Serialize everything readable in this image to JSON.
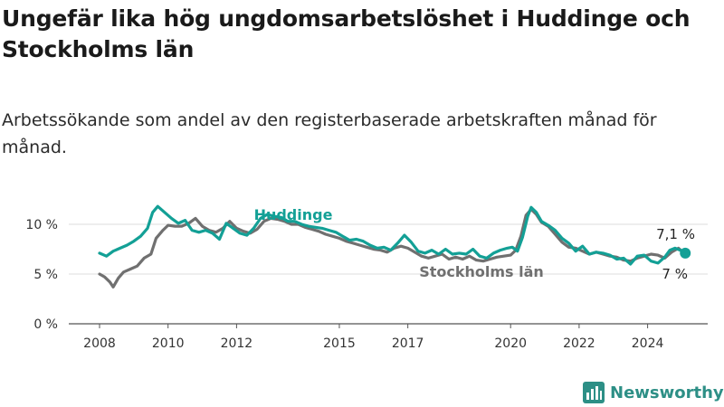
{
  "title": "Ungefär lika hög ungdomsarbetslöshet i Huddinge och Stockholms län",
  "subtitle": "Arbetssökande som andel av den registerbaserade arbetskraften månad för månad.",
  "brand": {
    "name": "Newsworthy",
    "icon": "bar-chart-logo-icon"
  },
  "colors": {
    "huddinge": "#13a096",
    "stockholm": "#707070",
    "grid": "#dcdcdc",
    "axis": "#555555"
  },
  "chart_data": {
    "type": "line",
    "xlabel": "",
    "ylabel": "",
    "xlim": [
      2007.5,
      2025.9
    ],
    "ylim": [
      0,
      11
    ],
    "y_ticks": [
      {
        "value": 0,
        "label": "0 %"
      },
      {
        "value": 5,
        "label": "5 %"
      },
      {
        "value": 10,
        "label": "10 %"
      }
    ],
    "x_ticks": [
      {
        "value": 2008,
        "label": "2008"
      },
      {
        "value": 2010,
        "label": "2010"
      },
      {
        "value": 2012,
        "label": "2012"
      },
      {
        "value": 2015,
        "label": "2015"
      },
      {
        "value": 2017,
        "label": "2017"
      },
      {
        "value": 2020,
        "label": "2020"
      },
      {
        "value": 2022,
        "label": "2022"
      },
      {
        "value": 2024,
        "label": "2024"
      }
    ],
    "grid": "horizontal",
    "series": [
      {
        "name": "Huddinge",
        "color": "#13a096",
        "end_label": "7,1 %",
        "end_marker": true,
        "points": [
          [
            2008.0,
            7.1
          ],
          [
            2008.2,
            6.8
          ],
          [
            2008.4,
            7.3
          ],
          [
            2008.6,
            7.6
          ],
          [
            2008.8,
            7.9
          ],
          [
            2009.0,
            8.3
          ],
          [
            2009.2,
            8.8
          ],
          [
            2009.4,
            9.6
          ],
          [
            2009.55,
            11.2
          ],
          [
            2009.7,
            11.8
          ],
          [
            2009.9,
            11.2
          ],
          [
            2010.1,
            10.6
          ],
          [
            2010.3,
            10.1
          ],
          [
            2010.5,
            10.4
          ],
          [
            2010.7,
            9.4
          ],
          [
            2010.9,
            9.2
          ],
          [
            2011.1,
            9.4
          ],
          [
            2011.3,
            9.1
          ],
          [
            2011.5,
            8.5
          ],
          [
            2011.7,
            10.1
          ],
          [
            2011.9,
            9.6
          ],
          [
            2012.1,
            9.1
          ],
          [
            2012.3,
            8.9
          ],
          [
            2012.5,
            9.6
          ],
          [
            2012.7,
            10.6
          ],
          [
            2012.9,
            11.0
          ],
          [
            2013.1,
            10.8
          ],
          [
            2013.3,
            10.7
          ],
          [
            2013.5,
            10.3
          ],
          [
            2013.7,
            10.3
          ],
          [
            2013.9,
            10.0
          ],
          [
            2014.1,
            9.8
          ],
          [
            2014.3,
            9.7
          ],
          [
            2014.5,
            9.6
          ],
          [
            2014.7,
            9.4
          ],
          [
            2014.9,
            9.2
          ],
          [
            2015.1,
            8.8
          ],
          [
            2015.3,
            8.4
          ],
          [
            2015.5,
            8.5
          ],
          [
            2015.7,
            8.3
          ],
          [
            2015.9,
            7.9
          ],
          [
            2016.1,
            7.6
          ],
          [
            2016.3,
            7.7
          ],
          [
            2016.5,
            7.4
          ],
          [
            2016.7,
            8.1
          ],
          [
            2016.9,
            8.9
          ],
          [
            2017.1,
            8.2
          ],
          [
            2017.3,
            7.3
          ],
          [
            2017.5,
            7.1
          ],
          [
            2017.7,
            7.4
          ],
          [
            2017.9,
            7.0
          ],
          [
            2018.1,
            7.5
          ],
          [
            2018.3,
            7.0
          ],
          [
            2018.5,
            7.1
          ],
          [
            2018.7,
            7.0
          ],
          [
            2018.9,
            7.5
          ],
          [
            2019.1,
            6.8
          ],
          [
            2019.3,
            6.6
          ],
          [
            2019.5,
            7.1
          ],
          [
            2019.7,
            7.4
          ],
          [
            2019.9,
            7.6
          ],
          [
            2020.05,
            7.7
          ],
          [
            2020.2,
            7.3
          ],
          [
            2020.35,
            8.7
          ],
          [
            2020.5,
            10.8
          ],
          [
            2020.6,
            11.7
          ],
          [
            2020.75,
            11.2
          ],
          [
            2020.9,
            10.3
          ],
          [
            2021.1,
            9.9
          ],
          [
            2021.3,
            9.4
          ],
          [
            2021.5,
            8.6
          ],
          [
            2021.7,
            8.1
          ],
          [
            2021.9,
            7.3
          ],
          [
            2022.1,
            7.8
          ],
          [
            2022.3,
            7.0
          ],
          [
            2022.5,
            7.2
          ],
          [
            2022.7,
            7.1
          ],
          [
            2022.9,
            6.9
          ],
          [
            2023.1,
            6.5
          ],
          [
            2023.3,
            6.6
          ],
          [
            2023.5,
            6.0
          ],
          [
            2023.7,
            6.8
          ],
          [
            2023.9,
            6.9
          ],
          [
            2024.1,
            6.3
          ],
          [
            2024.3,
            6.1
          ],
          [
            2024.5,
            6.7
          ],
          [
            2024.65,
            7.4
          ],
          [
            2024.8,
            7.6
          ],
          [
            2024.95,
            7.4
          ],
          [
            2025.1,
            7.1
          ]
        ]
      },
      {
        "name": "Stockholms län",
        "color": "#707070",
        "end_label": "7 %",
        "end_marker": false,
        "points": [
          [
            2008.0,
            5.0
          ],
          [
            2008.15,
            4.7
          ],
          [
            2008.3,
            4.2
          ],
          [
            2008.4,
            3.7
          ],
          [
            2008.55,
            4.6
          ],
          [
            2008.7,
            5.2
          ],
          [
            2008.9,
            5.5
          ],
          [
            2009.1,
            5.8
          ],
          [
            2009.3,
            6.6
          ],
          [
            2009.5,
            7.0
          ],
          [
            2009.65,
            8.6
          ],
          [
            2009.85,
            9.4
          ],
          [
            2010.0,
            9.9
          ],
          [
            2010.2,
            9.8
          ],
          [
            2010.4,
            9.8
          ],
          [
            2010.6,
            10.1
          ],
          [
            2010.8,
            10.6
          ],
          [
            2011.0,
            9.8
          ],
          [
            2011.2,
            9.4
          ],
          [
            2011.4,
            9.2
          ],
          [
            2011.6,
            9.6
          ],
          [
            2011.8,
            10.3
          ],
          [
            2012.0,
            9.6
          ],
          [
            2012.2,
            9.3
          ],
          [
            2012.4,
            9.1
          ],
          [
            2012.6,
            9.5
          ],
          [
            2012.8,
            10.3
          ],
          [
            2013.0,
            10.6
          ],
          [
            2013.2,
            10.5
          ],
          [
            2013.4,
            10.3
          ],
          [
            2013.6,
            10.0
          ],
          [
            2013.8,
            10.0
          ],
          [
            2014.0,
            9.7
          ],
          [
            2014.2,
            9.5
          ],
          [
            2014.4,
            9.3
          ],
          [
            2014.6,
            9.0
          ],
          [
            2014.8,
            8.8
          ],
          [
            2015.0,
            8.6
          ],
          [
            2015.2,
            8.3
          ],
          [
            2015.4,
            8.1
          ],
          [
            2015.6,
            7.9
          ],
          [
            2015.8,
            7.7
          ],
          [
            2016.0,
            7.5
          ],
          [
            2016.2,
            7.4
          ],
          [
            2016.4,
            7.2
          ],
          [
            2016.6,
            7.6
          ],
          [
            2016.8,
            7.8
          ],
          [
            2017.0,
            7.6
          ],
          [
            2017.2,
            7.2
          ],
          [
            2017.4,
            6.8
          ],
          [
            2017.6,
            6.6
          ],
          [
            2017.8,
            6.8
          ],
          [
            2018.0,
            7.0
          ],
          [
            2018.2,
            6.5
          ],
          [
            2018.4,
            6.7
          ],
          [
            2018.6,
            6.5
          ],
          [
            2018.8,
            6.8
          ],
          [
            2019.0,
            6.4
          ],
          [
            2019.2,
            6.3
          ],
          [
            2019.4,
            6.5
          ],
          [
            2019.6,
            6.7
          ],
          [
            2019.8,
            6.8
          ],
          [
            2020.0,
            6.9
          ],
          [
            2020.15,
            7.4
          ],
          [
            2020.3,
            8.8
          ],
          [
            2020.45,
            10.9
          ],
          [
            2020.6,
            11.5
          ],
          [
            2020.75,
            11.0
          ],
          [
            2020.9,
            10.2
          ],
          [
            2021.1,
            9.8
          ],
          [
            2021.3,
            9.0
          ],
          [
            2021.5,
            8.2
          ],
          [
            2021.7,
            7.7
          ],
          [
            2021.9,
            7.6
          ],
          [
            2022.1,
            7.3
          ],
          [
            2022.3,
            7.0
          ],
          [
            2022.5,
            7.2
          ],
          [
            2022.7,
            7.0
          ],
          [
            2022.9,
            6.8
          ],
          [
            2023.1,
            6.7
          ],
          [
            2023.3,
            6.4
          ],
          [
            2023.5,
            6.3
          ],
          [
            2023.7,
            6.6
          ],
          [
            2023.9,
            6.8
          ],
          [
            2024.1,
            7.0
          ],
          [
            2024.3,
            6.9
          ],
          [
            2024.5,
            6.6
          ],
          [
            2024.7,
            7.2
          ],
          [
            2024.9,
            7.6
          ],
          [
            2025.1,
            7.0
          ]
        ]
      }
    ]
  }
}
